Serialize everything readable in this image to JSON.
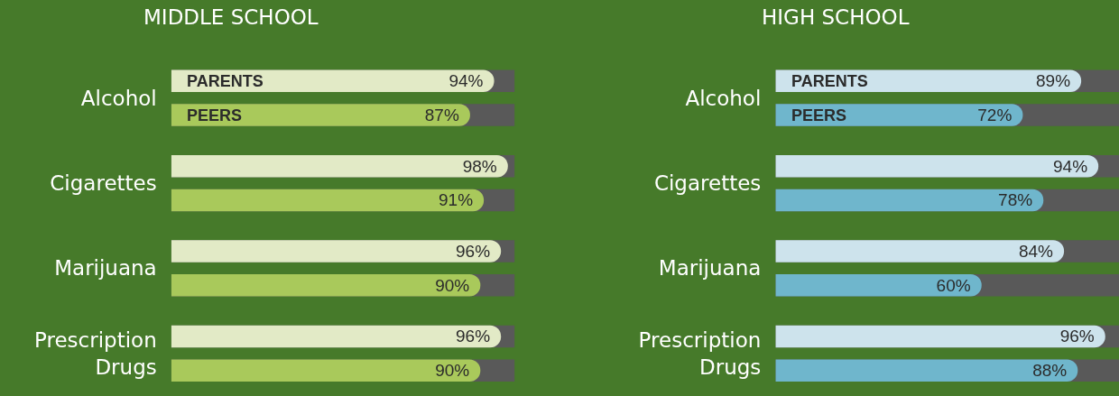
{
  "chart_data": [
    {
      "type": "bar",
      "orientation": "horizontal",
      "title": "MIDDLE SCHOOL",
      "categories": [
        "Alcohol",
        "Cigarettes",
        "Marijuana",
        "Prescription Drugs"
      ],
      "xlim": [
        0,
        100
      ],
      "tick_labels": "y",
      "grid": false,
      "series": [
        {
          "name": "PARENTS",
          "color": "#e2eac6",
          "values": [
            94,
            98,
            96,
            96
          ],
          "value_labels": [
            "94%",
            "98%",
            "96%",
            "96%"
          ]
        },
        {
          "name": "PEERS",
          "color": "#a9c95b",
          "values": [
            87,
            91,
            90,
            90
          ],
          "value_labels": [
            "87%",
            "91%",
            "90%",
            "90%"
          ]
        }
      ]
    },
    {
      "type": "bar",
      "orientation": "horizontal",
      "title": "HIGH SCHOOL",
      "categories": [
        "Alcohol",
        "Cigarettes",
        "Marijuana",
        "Prescription Drugs"
      ],
      "xlim": [
        0,
        100
      ],
      "tick_labels": "y",
      "grid": false,
      "series": [
        {
          "name": "PARENTS",
          "color": "#cde3ec",
          "values": [
            89,
            94,
            84,
            96
          ],
          "value_labels": [
            "89%",
            "94%",
            "84%",
            "96%"
          ]
        },
        {
          "name": "PEERS",
          "color": "#6fb6cc",
          "values": [
            72,
            78,
            60,
            88
          ],
          "value_labels": [
            "72%",
            "78%",
            "60%",
            "88%"
          ]
        }
      ]
    }
  ]
}
